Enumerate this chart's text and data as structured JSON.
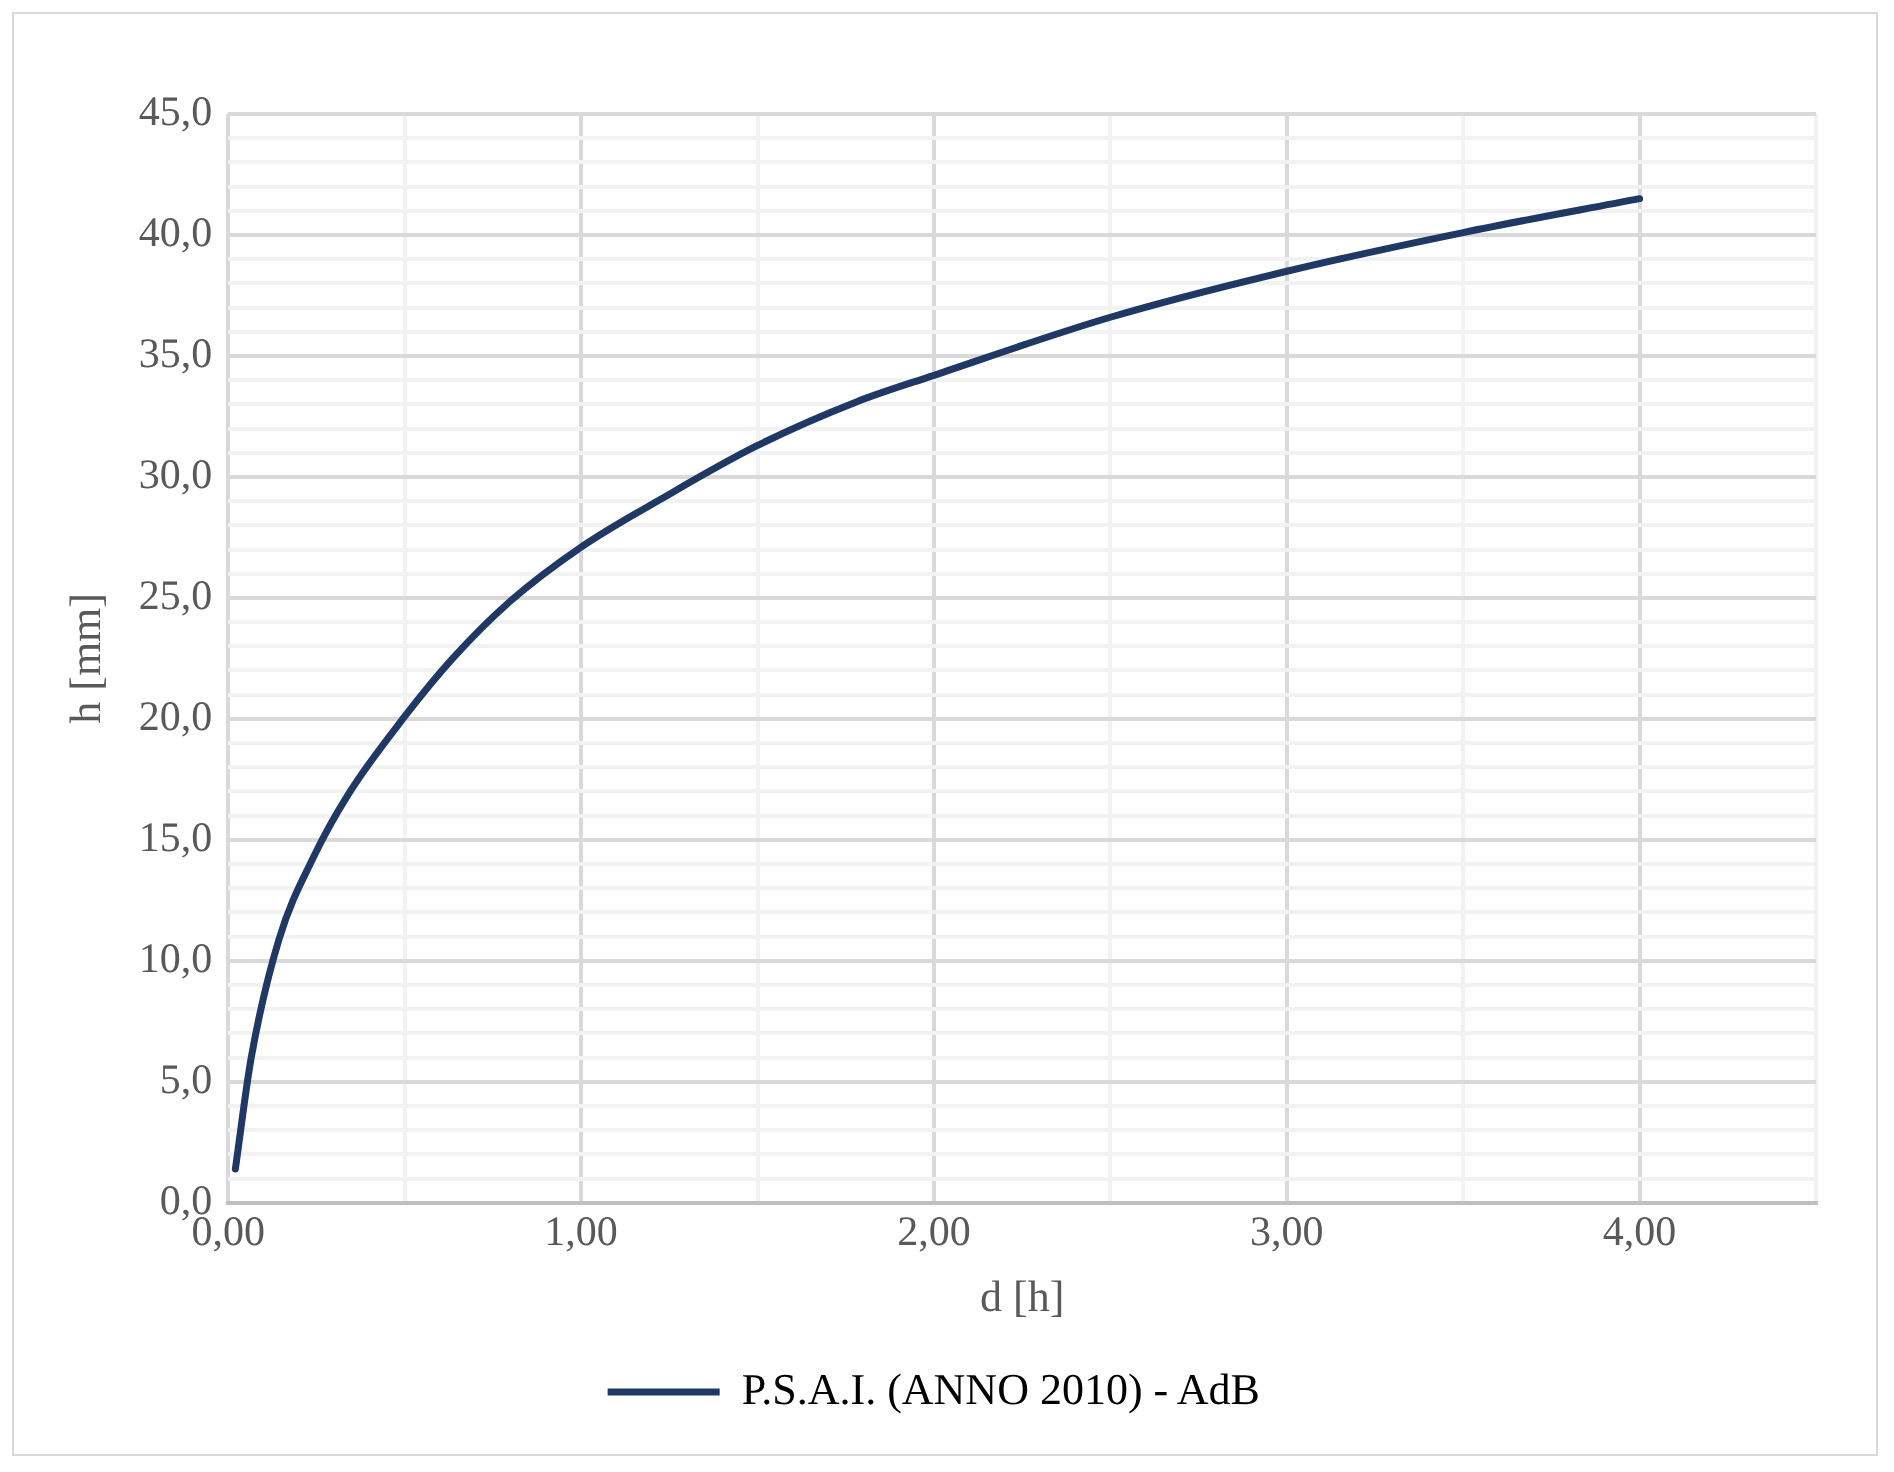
{
  "chart_data": {
    "type": "line",
    "xlabel": "d [h]",
    "ylabel": "h [mm]",
    "xlim": [
      0,
      4.5
    ],
    "ylim": [
      0,
      45
    ],
    "xticks": [
      {
        "value": 0,
        "label": "0,00"
      },
      {
        "value": 0.5,
        "label": null
      },
      {
        "value": 1,
        "label": "1,00"
      },
      {
        "value": 1.5,
        "label": null
      },
      {
        "value": 2,
        "label": "2,00"
      },
      {
        "value": 2.5,
        "label": null
      },
      {
        "value": 3,
        "label": "3,00"
      },
      {
        "value": 3.5,
        "label": null
      },
      {
        "value": 4,
        "label": "4,00"
      },
      {
        "value": 4.5,
        "label": null
      }
    ],
    "yticks": [
      {
        "value": 0,
        "label": "0,0"
      },
      {
        "value": 1,
        "label": null
      },
      {
        "value": 2,
        "label": null
      },
      {
        "value": 3,
        "label": null
      },
      {
        "value": 4,
        "label": null
      },
      {
        "value": 5,
        "label": "5,0"
      },
      {
        "value": 6,
        "label": null
      },
      {
        "value": 7,
        "label": null
      },
      {
        "value": 8,
        "label": null
      },
      {
        "value": 9,
        "label": null
      },
      {
        "value": 10,
        "label": "10,0"
      },
      {
        "value": 11,
        "label": null
      },
      {
        "value": 12,
        "label": null
      },
      {
        "value": 13,
        "label": null
      },
      {
        "value": 14,
        "label": null
      },
      {
        "value": 15,
        "label": "15,0"
      },
      {
        "value": 16,
        "label": null
      },
      {
        "value": 17,
        "label": null
      },
      {
        "value": 18,
        "label": null
      },
      {
        "value": 19,
        "label": null
      },
      {
        "value": 20,
        "label": "20,0"
      },
      {
        "value": 21,
        "label": null
      },
      {
        "value": 22,
        "label": null
      },
      {
        "value": 23,
        "label": null
      },
      {
        "value": 24,
        "label": null
      },
      {
        "value": 25,
        "label": "25,0"
      },
      {
        "value": 26,
        "label": null
      },
      {
        "value": 27,
        "label": null
      },
      {
        "value": 28,
        "label": null
      },
      {
        "value": 29,
        "label": null
      },
      {
        "value": 30,
        "label": "30,0"
      },
      {
        "value": 31,
        "label": null
      },
      {
        "value": 32,
        "label": null
      },
      {
        "value": 33,
        "label": null
      },
      {
        "value": 34,
        "label": null
      },
      {
        "value": 35,
        "label": "35,0"
      },
      {
        "value": 36,
        "label": null
      },
      {
        "value": 37,
        "label": null
      },
      {
        "value": 38,
        "label": null
      },
      {
        "value": 39,
        "label": null
      },
      {
        "value": 40,
        "label": "40,0"
      },
      {
        "value": 41,
        "label": null
      },
      {
        "value": 42,
        "label": null
      },
      {
        "value": 43,
        "label": null
      },
      {
        "value": 44,
        "label": null
      },
      {
        "value": 45,
        "label": "45,0"
      }
    ],
    "grid": true,
    "legend": "bottom",
    "marker": "none",
    "line_style": "solid",
    "series": [
      {
        "name": "P.S.A.I. (ANNO 2010) - AdB",
        "color": "#203864",
        "x": [
          0.02,
          0.065,
          0.144,
          0.242,
          0.341,
          0.5,
          0.636,
          0.794,
          1.0,
          1.228,
          1.5,
          1.78,
          2.0,
          2.5,
          3.0,
          3.5,
          4.0
        ],
        "values": [
          1.4,
          6.0,
          10.9,
          14.3,
          16.9,
          20.1,
          22.5,
          24.8,
          27.1,
          29.1,
          31.3,
          33.1,
          34.2,
          36.6,
          38.5,
          40.1,
          41.5
        ]
      }
    ]
  }
}
